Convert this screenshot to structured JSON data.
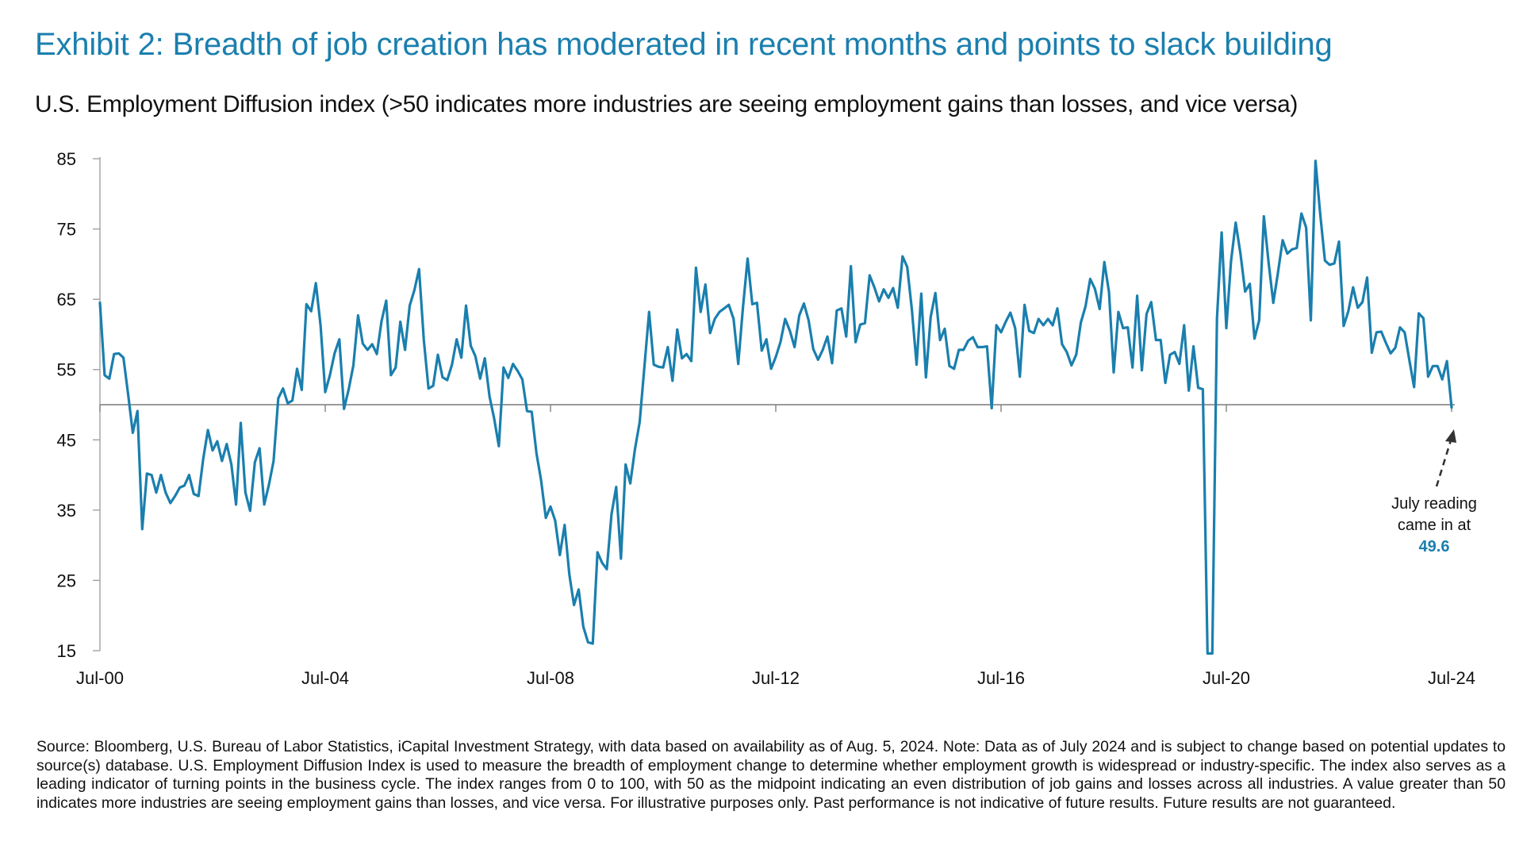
{
  "title": "Exhibit 2: Breadth of job creation has moderated in recent months and points to slack building",
  "subtitle": "U.S. Employment Diffusion index (>50 indicates more industries are seeing employment gains than losses, and vice versa)",
  "footnote": "Source: Bloomberg, U.S. Bureau of Labor Statistics, iCapital Investment Strategy, with data based on availability as of Aug. 5, 2024. Note: Data as of July 2024 and is subject to change based on potential updates to source(s) database. U.S. Employment Diffusion Index is used to measure the breadth of employment change to determine whether employment growth is widespread or industry-specific. The index also serves as a leading indicator of turning points in the business cycle. The index ranges from 0 to 100, with 50 as the midpoint indicating an even distribution of job gains and losses across all industries. A value greater than 50 indicates more industries are seeing employment gains than losses, and vice versa. For illustrative purposes only. Past performance is not indicative of future results. Future results are not guaranteed.",
  "chart_data": {
    "type": "line",
    "xlabel": "",
    "ylabel": "",
    "ylim": [
      15,
      85
    ],
    "yticks": [
      15,
      25,
      35,
      45,
      55,
      65,
      75,
      85
    ],
    "xticks": [
      {
        "label": "Jul-00",
        "index": 0
      },
      {
        "label": "Jul-04",
        "index": 48
      },
      {
        "label": "Jul-08",
        "index": 96
      },
      {
        "label": "Jul-12",
        "index": 144
      },
      {
        "label": "Jul-16",
        "index": 192
      },
      {
        "label": "Jul-20",
        "index": 240
      },
      {
        "label": "Jul-24",
        "index": 288
      }
    ],
    "reference_line": 50,
    "grid": false,
    "line_color": "#1a7fae",
    "start": "Jul-00",
    "end": "Jul-24",
    "annotation": {
      "lines": [
        "July reading",
        "came in at"
      ],
      "value": "49.6",
      "value_color": "#1a7fae"
    },
    "series": [
      {
        "values": [
          64.5,
          54.2,
          53.7,
          57.2,
          57.3,
          56.7,
          51.5,
          46.0,
          49.1,
          32.3,
          40.2,
          40.0,
          37.5,
          40.0,
          37.5,
          36.0,
          37.0,
          38.2,
          38.5,
          40.0,
          37.3,
          37.0,
          42.3,
          46.4,
          43.5,
          44.8,
          42.0,
          44.4,
          41.5,
          35.8,
          47.4,
          37.5,
          34.9,
          41.8,
          43.8,
          35.8,
          38.6,
          42.0,
          50.9,
          52.3,
          50.2,
          50.6,
          55.1,
          52.1,
          64.3,
          63.3,
          67.3,
          61.3,
          51.8,
          54.2,
          57.3,
          59.3,
          49.4,
          52.2,
          55.6,
          62.7,
          58.7,
          57.8,
          58.6,
          57.2,
          61.9,
          64.8,
          54.2,
          55.3,
          61.8,
          57.8,
          64.1,
          66.3,
          69.3,
          59.2,
          52.3,
          52.7,
          57.1,
          53.9,
          53.5,
          55.7,
          59.3,
          56.7,
          64.1,
          58.4,
          56.9,
          53.7,
          56.6,
          51.2,
          48.0,
          44.1,
          55.3,
          53.8,
          55.8,
          54.8,
          53.6,
          49.1,
          49.0,
          43.1,
          39.2,
          33.9,
          35.5,
          33.5,
          28.6,
          32.9,
          25.9,
          21.5,
          23.7,
          18.4,
          16.2,
          16.0,
          29.0,
          27.5,
          26.6,
          34.4,
          38.3,
          28.1,
          41.5,
          38.8,
          43.7,
          47.5,
          55.3,
          63.2,
          55.7,
          55.4,
          55.3,
          58.2,
          53.4,
          60.7,
          56.6,
          57.2,
          56.2,
          69.5,
          63.2,
          67.1,
          60.2,
          62.2,
          63.2,
          63.7,
          64.2,
          62.2,
          55.8,
          63.8,
          70.8,
          64.3,
          64.5,
          57.7,
          59.3,
          55.1,
          56.8,
          58.9,
          62.2,
          60.5,
          58.2,
          62.7,
          64.4,
          62.0,
          57.9,
          56.4,
          57.8,
          59.7,
          55.9,
          63.4,
          63.7,
          59.7,
          69.7,
          58.9,
          61.4,
          61.6,
          68.4,
          66.7,
          64.7,
          66.4,
          65.2,
          66.6,
          63.8,
          71.1,
          69.6,
          63.5,
          55.7,
          65.8,
          53.9,
          62.5,
          65.9,
          59.2,
          60.8,
          55.5,
          55.1,
          57.8,
          57.8,
          59.1,
          59.6,
          58.2,
          58.2,
          58.3,
          49.5,
          61.3,
          60.3,
          61.8,
          63.1,
          60.9,
          54.0,
          64.2,
          60.5,
          60.2,
          62.2,
          61.3,
          62.2,
          61.3,
          63.7,
          58.6,
          57.5,
          55.6,
          57.1,
          61.7,
          64.0,
          67.9,
          66.5,
          63.6,
          70.3,
          66.0,
          54.6,
          63.2,
          60.9,
          61.0,
          55.3,
          65.5,
          54.9,
          62.9,
          64.6,
          59.2,
          59.2,
          53.1,
          57.1,
          57.5,
          55.8,
          61.3,
          52.0,
          58.3,
          52.4,
          52.2,
          14.6,
          14.6,
          62.3,
          74.5,
          60.9,
          70.4,
          75.9,
          71.5,
          66.1,
          67.2,
          59.4,
          62.0,
          76.8,
          70.2,
          64.5,
          68.8,
          73.4,
          71.5,
          72.1,
          72.3,
          77.2,
          75.2,
          62.0,
          84.7,
          77.2,
          70.5,
          69.9,
          70.1,
          73.2,
          61.2,
          63.3,
          66.7,
          63.8,
          64.6,
          68.1,
          57.4,
          60.3,
          60.4,
          58.8,
          57.3,
          58.1,
          61.0,
          60.3,
          56.3,
          52.5,
          63.0,
          62.3,
          54.0,
          55.5,
          55.5,
          53.6,
          56.2,
          49.6
        ]
      }
    ]
  }
}
